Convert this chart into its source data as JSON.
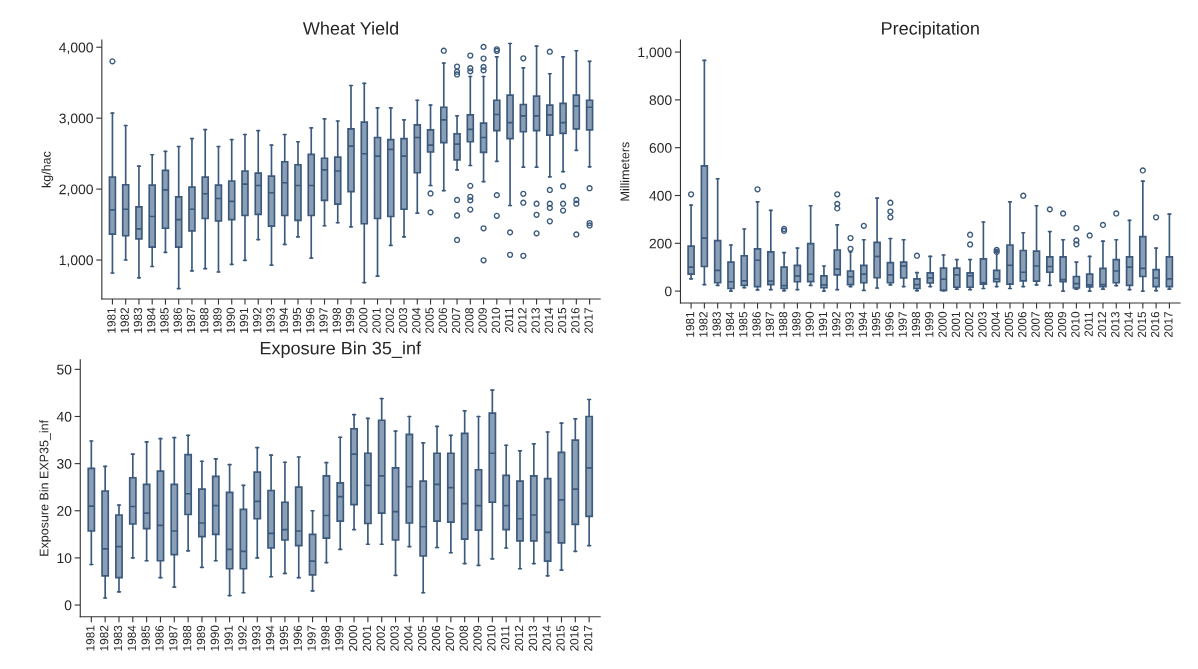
{
  "chart_data": [
    {
      "type": "box",
      "title": "Wheat Yield",
      "ylabel": "kg/hac",
      "marker": "circle",
      "grid": false,
      "categories": [
        "1981",
        "1982",
        "1983",
        "1984",
        "1985",
        "1986",
        "1987",
        "1988",
        "1989",
        "1990",
        "1991",
        "1992",
        "1993",
        "1994",
        "1995",
        "1996",
        "1997",
        "1998",
        "1999",
        "2000",
        "2001",
        "2002",
        "2003",
        "2004",
        "2005",
        "2006",
        "2007",
        "2008",
        "2009",
        "2010",
        "2011",
        "2012",
        "2013",
        "2014",
        "2015",
        "2016",
        "2017"
      ],
      "ylim": [
        450,
        4100
      ],
      "yticks": [
        {
          "value": 1000,
          "label": "1,000"
        },
        {
          "value": 2000,
          "label": "2,000"
        },
        {
          "value": 3000,
          "label": "3,000"
        },
        {
          "value": 4000,
          "label": "4,000"
        }
      ],
      "series": [
        {
          "color": "#8a9fb5",
          "boxes": [
            {
              "low": 817,
              "q1": 1366,
              "median": 1706,
              "q3": 2168,
              "high": 3072,
              "outliers": [
                3801
              ]
            },
            {
              "low": 1001,
              "q1": 1342,
              "median": 1716,
              "q3": 2061,
              "high": 2897
            },
            {
              "low": 749,
              "q1": 1298,
              "median": 1439,
              "q3": 1750,
              "high": 2323
            },
            {
              "low": 909,
              "q1": 1181,
              "median": 1614,
              "q3": 2056,
              "high": 2484
            },
            {
              "low": 1108,
              "q1": 1448,
              "median": 1988,
              "q3": 2265,
              "high": 2532
            },
            {
              "low": 598,
              "q1": 1181,
              "median": 1570,
              "q3": 1891,
              "high": 2600
            },
            {
              "low": 846,
              "q1": 1410,
              "median": 1716,
              "q3": 2027,
              "high": 2712
            },
            {
              "low": 880,
              "q1": 1585,
              "median": 1935,
              "q3": 2168,
              "high": 2838
            },
            {
              "low": 831,
              "q1": 1551,
              "median": 1867,
              "q3": 2056,
              "high": 2600
            },
            {
              "low": 938,
              "q1": 1570,
              "median": 1828,
              "q3": 2114,
              "high": 2698
            },
            {
              "low": 996,
              "q1": 1628,
              "median": 2071,
              "q3": 2255,
              "high": 2770
            },
            {
              "low": 1288,
              "q1": 1643,
              "median": 2051,
              "q3": 2226,
              "high": 2824
            },
            {
              "low": 928,
              "q1": 1478,
              "median": 1949,
              "q3": 2182,
              "high": 2620
            },
            {
              "low": 1220,
              "q1": 1628,
              "median": 2090,
              "q3": 2386,
              "high": 2770
            },
            {
              "low": 1327,
              "q1": 1560,
              "median": 2051,
              "q3": 2343,
              "high": 2668
            },
            {
              "low": 1026,
              "q1": 1628,
              "median": 2051,
              "q3": 2489,
              "high": 2863
            },
            {
              "low": 1483,
              "q1": 1842,
              "median": 2270,
              "q3": 2435,
              "high": 2989
            },
            {
              "low": 1526,
              "q1": 1789,
              "median": 2255,
              "q3": 2450,
              "high": 2960
            },
            {
              "low": 1468,
              "q1": 1964,
              "median": 2605,
              "q3": 2848,
              "high": 3461
            },
            {
              "low": 681,
              "q1": 1512,
              "median": 2498,
              "q3": 2945,
              "high": 3490
            },
            {
              "low": 773,
              "q1": 1585,
              "median": 2464,
              "q3": 2727,
              "high": 3145
            },
            {
              "low": 1206,
              "q1": 1614,
              "median": 2561,
              "q3": 2698,
              "high": 3145
            },
            {
              "low": 1327,
              "q1": 1716,
              "median": 2464,
              "q3": 2712,
              "high": 2975
            },
            {
              "low": 1662,
              "q1": 2231,
              "median": 2727,
              "q3": 2906,
              "high": 3252
            },
            {
              "low": 2051,
              "q1": 2523,
              "median": 2620,
              "q3": 2834,
              "high": 3184,
              "outliers": [
                1939,
                1672
              ]
            },
            {
              "low": 1978,
              "q1": 2654,
              "median": 2975,
              "q3": 3154,
              "high": 3776,
              "outliers": [
                3951
              ]
            },
            {
              "low": 2270,
              "q1": 2411,
              "median": 2634,
              "q3": 2780,
              "high": 3033,
              "outliers": [
                3728,
                3655,
                3616,
                1847,
                1628,
                1283
              ]
            },
            {
              "low": 2333,
              "q1": 2668,
              "median": 2843,
              "q3": 3047,
              "high": 3587,
              "outliers": [
                3883,
                3704,
                3660,
                2046,
                1891,
                1842,
                1711
              ]
            },
            {
              "low": 2105,
              "q1": 2518,
              "median": 2727,
              "q3": 2931,
              "high": 3587,
              "outliers": [
                4005,
                3840,
                3723,
                3674,
                1448,
                996
              ]
            },
            {
              "low": 2391,
              "q1": 2824,
              "median": 3052,
              "q3": 3252,
              "high": 3864,
              "outliers": [
                3971,
                3947,
                1915,
                1623
              ]
            },
            {
              "low": 1769,
              "q1": 2712,
              "median": 2936,
              "q3": 3325,
              "high": 4053,
              "outliers": [
                1390,
                1074
              ]
            },
            {
              "low": 2309,
              "q1": 2809,
              "median": 3033,
              "q3": 3193,
              "high": 3708,
              "outliers": [
                3844,
                1934,
                1808,
                1060
              ]
            },
            {
              "low": 2309,
              "q1": 2824,
              "median": 3033,
              "q3": 3310,
              "high": 4015,
              "outliers": [
                1794,
                1638,
                1376
              ]
            },
            {
              "low": 2173,
              "q1": 2761,
              "median": 3047,
              "q3": 3184,
              "high": 3626,
              "outliers": [
                3937,
                1988,
                1794,
                1735,
                1546
              ]
            },
            {
              "low": 2246,
              "q1": 2785,
              "median": 2936,
              "q3": 3208,
              "high": 3864,
              "outliers": [
                2041,
                1794,
                1697
              ]
            },
            {
              "low": 2547,
              "q1": 2848,
              "median": 3169,
              "q3": 3325,
              "high": 3951,
              "outliers": [
                1847,
                1794,
                1361
              ]
            },
            {
              "low": 2314,
              "q1": 2834,
              "median": 3154,
              "q3": 3252,
              "high": 3801,
              "outliers": [
                2012,
                1521,
                1487
              ]
            }
          ]
        }
      ]
    },
    {
      "type": "box",
      "title": "Precipitation",
      "ylabel": "Millimeters",
      "marker": "circle",
      "grid": false,
      "categories": [
        "1981",
        "1982",
        "1983",
        "1984",
        "1985",
        "1986",
        "1987",
        "1988",
        "1989",
        "1990",
        "1991",
        "1992",
        "1993",
        "1994",
        "1995",
        "1996",
        "1997",
        "1998",
        "1999",
        "2000",
        "2001",
        "2002",
        "2003",
        "2004",
        "2005",
        "2006",
        "2007",
        "2008",
        "2009",
        "2010",
        "2011",
        "2012",
        "2013",
        "2014",
        "2015",
        "2016",
        "2017"
      ],
      "ylim": [
        -50,
        1050
      ],
      "yticks": [
        0,
        200,
        400,
        600,
        800,
        {
          "value": 1000,
          "label": "1,000"
        }
      ],
      "series": [
        {
          "color": "#8a9fb5",
          "boxes": [
            {
              "low": 51,
              "q1": 71,
              "median": 100,
              "q3": 188,
              "high": 360,
              "outliers": [
                405
              ]
            },
            {
              "low": 27,
              "q1": 103,
              "median": 222,
              "q3": 524,
              "high": 965
            },
            {
              "low": 24,
              "q1": 35,
              "median": 87,
              "q3": 211,
              "high": 470
            },
            {
              "low": 0,
              "q1": 11,
              "median": 39,
              "q3": 121,
              "high": 193
            },
            {
              "low": 14,
              "q1": 24,
              "median": 43,
              "q3": 148,
              "high": 260
            },
            {
              "low": 5,
              "q1": 19,
              "median": 129,
              "q3": 177,
              "high": 373,
              "outliers": [
                426
              ]
            },
            {
              "low": 6,
              "q1": 27,
              "median": 42,
              "q3": 164,
              "high": 338
            },
            {
              "low": 2,
              "q1": 11,
              "median": 23,
              "q3": 100,
              "high": 161,
              "outliers": [
                260,
                252
              ]
            },
            {
              "low": 6,
              "q1": 39,
              "median": 63,
              "q3": 108,
              "high": 180
            },
            {
              "low": 24,
              "q1": 40,
              "median": 71,
              "q3": 199,
              "high": 357
            },
            {
              "low": 0,
              "q1": 14,
              "median": 26,
              "q3": 64,
              "high": 105
            },
            {
              "low": 6,
              "q1": 68,
              "median": 92,
              "q3": 172,
              "high": 277,
              "outliers": [
                405,
                365,
                346
              ]
            },
            {
              "low": 19,
              "q1": 27,
              "median": 60,
              "q3": 84,
              "high": 164,
              "outliers": [
                222,
                177
              ]
            },
            {
              "low": 3,
              "q1": 35,
              "median": 71,
              "q3": 108,
              "high": 215,
              "outliers": [
                273
              ]
            },
            {
              "low": 13,
              "q1": 56,
              "median": 145,
              "q3": 204,
              "high": 389
            },
            {
              "low": 26,
              "q1": 35,
              "median": 68,
              "q3": 119,
              "high": 220,
              "outliers": [
                370,
                333,
                309
              ]
            },
            {
              "low": 19,
              "q1": 55,
              "median": 105,
              "q3": 121,
              "high": 215
            },
            {
              "low": 2,
              "q1": 11,
              "median": 27,
              "q3": 51,
              "high": 77,
              "outliers": [
                148
              ]
            },
            {
              "low": 19,
              "q1": 34,
              "median": 55,
              "q3": 76,
              "high": 145
            },
            {
              "low": 2,
              "q1": 3,
              "median": 50,
              "q3": 96,
              "high": 151
            },
            {
              "low": 8,
              "q1": 16,
              "median": 68,
              "q3": 96,
              "high": 132
            },
            {
              "low": 6,
              "q1": 16,
              "median": 64,
              "q3": 76,
              "high": 132,
              "outliers": [
                236,
                195
              ]
            },
            {
              "low": 11,
              "q1": 29,
              "median": 35,
              "q3": 135,
              "high": 289
            },
            {
              "low": 19,
              "q1": 39,
              "median": 51,
              "q3": 87,
              "high": 167,
              "outliers": [
                172,
                164
              ]
            },
            {
              "low": 11,
              "q1": 29,
              "median": 108,
              "q3": 193,
              "high": 373
            },
            {
              "low": 19,
              "q1": 43,
              "median": 79,
              "q3": 170,
              "high": 244,
              "outliers": [
                399
              ]
            },
            {
              "low": 26,
              "q1": 42,
              "median": 105,
              "q3": 167,
              "high": 357
            },
            {
              "low": 24,
              "q1": 79,
              "median": 103,
              "q3": 143,
              "high": 249,
              "outliers": [
                342
              ]
            },
            {
              "low": 0,
              "q1": 40,
              "median": 48,
              "q3": 143,
              "high": 215,
              "outliers": [
                325
              ]
            },
            {
              "low": 8,
              "q1": 13,
              "median": 31,
              "q3": 61,
              "high": 121,
              "outliers": [
                264,
                212,
                196
              ]
            },
            {
              "low": 0,
              "q1": 18,
              "median": 26,
              "q3": 71,
              "high": 145,
              "outliers": [
                233
              ]
            },
            {
              "low": 8,
              "q1": 19,
              "median": 27,
              "q3": 95,
              "high": 209,
              "outliers": [
                277
              ]
            },
            {
              "low": 23,
              "q1": 35,
              "median": 84,
              "q3": 132,
              "high": 215,
              "outliers": [
                325
              ]
            },
            {
              "low": 6,
              "q1": 24,
              "median": 100,
              "q3": 143,
              "high": 296
            },
            {
              "low": 0,
              "q1": 61,
              "median": 95,
              "q3": 228,
              "high": 460,
              "outliers": [
                505
              ]
            },
            {
              "low": 2,
              "q1": 19,
              "median": 55,
              "q3": 90,
              "high": 180,
              "outliers": [
                309
              ]
            },
            {
              "low": 8,
              "q1": 19,
              "median": 51,
              "q3": 143,
              "high": 322
            }
          ]
        }
      ]
    },
    {
      "type": "box",
      "title": "Exposure Bin 35_inf",
      "ylabel": "Exposure Bin EXP35_inf",
      "marker": "circle",
      "grid": false,
      "categories": [
        "1981",
        "1982",
        "1983",
        "1984",
        "1985",
        "1986",
        "1987",
        "1988",
        "1989",
        "1990",
        "1991",
        "1992",
        "1993",
        "1994",
        "1995",
        "1996",
        "1997",
        "1998",
        "1999",
        "2000",
        "2001",
        "2002",
        "2003",
        "2004",
        "2005",
        "2006",
        "2007",
        "2008",
        "2009",
        "2010",
        "2011",
        "2012",
        "2013",
        "2014",
        "2015",
        "2016",
        "2017"
      ],
      "ylim": [
        -2.5,
        52
      ],
      "yticks": [
        0,
        10,
        20,
        30,
        40,
        50
      ],
      "series": [
        {
          "color": "#8a9fb5",
          "boxes": [
            {
              "low": 8.6,
              "q1": 15.7,
              "median": 21.0,
              "q3": 29.0,
              "high": 34.8
            },
            {
              "low": 1.5,
              "q1": 6.2,
              "median": 11.9,
              "q3": 24.2,
              "high": 29.4
            },
            {
              "low": 2.8,
              "q1": 5.8,
              "median": 12.4,
              "q3": 19.1,
              "high": 21.2
            },
            {
              "low": 10.0,
              "q1": 17.2,
              "median": 20.9,
              "q3": 27.0,
              "high": 32.0
            },
            {
              "low": 9.4,
              "q1": 16.2,
              "median": 19.5,
              "q3": 25.6,
              "high": 34.6
            },
            {
              "low": 5.8,
              "q1": 9.4,
              "median": 16.9,
              "q3": 28.4,
              "high": 35.3
            },
            {
              "low": 3.8,
              "q1": 10.7,
              "median": 15.7,
              "q3": 25.6,
              "high": 35.5
            },
            {
              "low": 11.5,
              "q1": 19.2,
              "median": 23.6,
              "q3": 31.9,
              "high": 36.0
            },
            {
              "low": 8.0,
              "q1": 14.5,
              "median": 17.4,
              "q3": 24.6,
              "high": 30.5
            },
            {
              "low": 9.4,
              "q1": 15.0,
              "median": 21.1,
              "q3": 27.3,
              "high": 31.0
            },
            {
              "low": 2.0,
              "q1": 7.7,
              "median": 11.8,
              "q3": 23.9,
              "high": 29.8
            },
            {
              "low": 2.6,
              "q1": 7.7,
              "median": 11.4,
              "q3": 20.3,
              "high": 25.4
            },
            {
              "low": 10.0,
              "q1": 18.3,
              "median": 22.0,
              "q3": 28.2,
              "high": 33.4
            },
            {
              "low": 6.0,
              "q1": 12.1,
              "median": 15.2,
              "q3": 24.3,
              "high": 31.8
            },
            {
              "low": 6.7,
              "q1": 13.8,
              "median": 16.0,
              "q3": 21.8,
              "high": 30.3
            },
            {
              "low": 5.8,
              "q1": 12.6,
              "median": 15.7,
              "q3": 25.0,
              "high": 31.4
            },
            {
              "low": 3.0,
              "q1": 6.4,
              "median": 9.3,
              "q3": 15.0,
              "high": 20.0
            },
            {
              "low": 9.0,
              "q1": 14.2,
              "median": 19.0,
              "q3": 27.4,
              "high": 30.2
            },
            {
              "low": 11.8,
              "q1": 17.8,
              "median": 23.0,
              "q3": 25.9,
              "high": 35.6
            },
            {
              "low": 16.0,
              "q1": 21.3,
              "median": 32.0,
              "q3": 37.4,
              "high": 40.4
            },
            {
              "low": 12.9,
              "q1": 17.3,
              "median": 25.4,
              "q3": 32.2,
              "high": 39.6
            },
            {
              "low": 12.9,
              "q1": 19.5,
              "median": 27.4,
              "q3": 39.2,
              "high": 43.8
            },
            {
              "low": 6.3,
              "q1": 13.8,
              "median": 19.8,
              "q3": 29.1,
              "high": 36.9
            },
            {
              "low": 12.4,
              "q1": 17.4,
              "median": 25.1,
              "q3": 36.2,
              "high": 40.0
            },
            {
              "low": 2.6,
              "q1": 10.4,
              "median": 16.6,
              "q3": 26.3,
              "high": 34.4
            },
            {
              "low": 12.2,
              "q1": 17.8,
              "median": 25.6,
              "q3": 32.2,
              "high": 37.9
            },
            {
              "low": 11.1,
              "q1": 17.6,
              "median": 24.9,
              "q3": 32.2,
              "high": 36.0
            },
            {
              "low": 8.8,
              "q1": 14.0,
              "median": 21.5,
              "q3": 36.4,
              "high": 41.2
            },
            {
              "low": 8.4,
              "q1": 15.9,
              "median": 21.1,
              "q3": 28.7,
              "high": 40.0
            },
            {
              "low": 9.8,
              "q1": 21.8,
              "median": 32.2,
              "q3": 40.7,
              "high": 45.6
            },
            {
              "low": 12.1,
              "q1": 16.0,
              "median": 21.1,
              "q3": 27.5,
              "high": 33.9
            },
            {
              "low": 7.7,
              "q1": 13.6,
              "median": 18.3,
              "q3": 26.3,
              "high": 32.7
            },
            {
              "low": 8.8,
              "q1": 13.6,
              "median": 19.1,
              "q3": 27.4,
              "high": 34.2
            },
            {
              "low": 6.2,
              "q1": 9.3,
              "median": 15.4,
              "q3": 26.8,
              "high": 36.7
            },
            {
              "low": 7.4,
              "q1": 13.2,
              "median": 22.3,
              "q3": 32.4,
              "high": 38.6
            },
            {
              "low": 11.4,
              "q1": 17.1,
              "median": 24.6,
              "q3": 35.0,
              "high": 39.5
            },
            {
              "low": 12.6,
              "q1": 18.8,
              "median": 29.1,
              "q3": 40.0,
              "high": 43.6
            }
          ]
        }
      ]
    }
  ]
}
